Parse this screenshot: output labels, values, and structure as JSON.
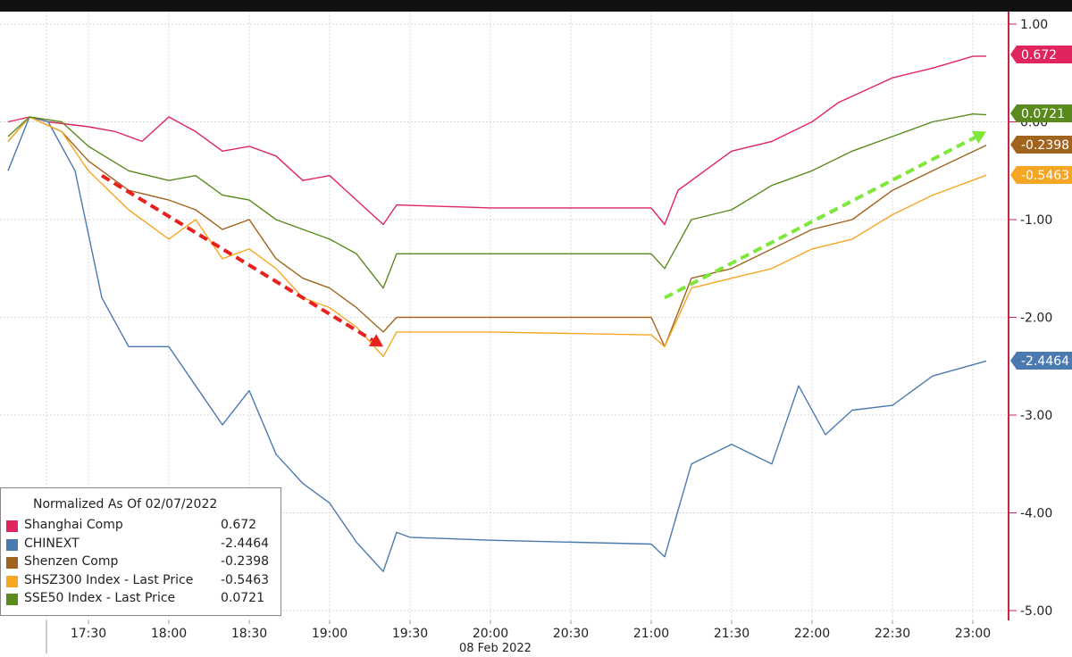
{
  "chart_data": {
    "type": "line",
    "title": "",
    "legend_title": "Normalized As Of 02/07/2022",
    "x_date_label": "08 Feb 2022",
    "xticks": [
      "17:30",
      "18:00",
      "18:30",
      "19:00",
      "19:30",
      "20:00",
      "20:30",
      "21:00",
      "21:30",
      "22:00",
      "22:30",
      "23:00"
    ],
    "yticks": [
      "1.00",
      "0.00",
      "-1.00",
      "-2.00",
      "-3.00",
      "-4.00",
      "-5.00"
    ],
    "ylim": [
      -5.0,
      1.0
    ],
    "xlim": [
      "17:00",
      "23:10"
    ],
    "grid": true,
    "legend_position": "bottom-left",
    "series": [
      {
        "name": "Shanghai Comp",
        "last": "0.672",
        "color": "#e0245e",
        "points": [
          [
            "17:00",
            0.0
          ],
          [
            "17:08",
            0.05
          ],
          [
            "17:15",
            0.0
          ],
          [
            "17:30",
            -0.05
          ],
          [
            "17:40",
            -0.1
          ],
          [
            "17:50",
            -0.2
          ],
          [
            "18:00",
            0.05
          ],
          [
            "18:10",
            -0.1
          ],
          [
            "18:20",
            -0.3
          ],
          [
            "18:30",
            -0.25
          ],
          [
            "18:40",
            -0.35
          ],
          [
            "18:50",
            -0.6
          ],
          [
            "19:00",
            -0.55
          ],
          [
            "19:10",
            -0.8
          ],
          [
            "19:20",
            -1.05
          ],
          [
            "19:25",
            -0.85
          ],
          [
            "20:00",
            -0.88
          ],
          [
            "21:00",
            -0.88
          ],
          [
            "21:05",
            -1.05
          ],
          [
            "21:10",
            -0.7
          ],
          [
            "21:30",
            -0.3
          ],
          [
            "21:45",
            -0.2
          ],
          [
            "22:00",
            0.0
          ],
          [
            "22:10",
            0.2
          ],
          [
            "22:30",
            0.45
          ],
          [
            "22:45",
            0.55
          ],
          [
            "23:00",
            0.67
          ],
          [
            "23:05",
            0.672
          ]
        ]
      },
      {
        "name": "CHINEXT",
        "last": "-2.4464",
        "color": "#4a7ab0",
        "points": [
          [
            "17:00",
            -0.5
          ],
          [
            "17:08",
            0.05
          ],
          [
            "17:15",
            0.0
          ],
          [
            "17:25",
            -0.5
          ],
          [
            "17:35",
            -1.8
          ],
          [
            "17:45",
            -2.3
          ],
          [
            "18:00",
            -2.3
          ],
          [
            "18:10",
            -2.7
          ],
          [
            "18:20",
            -3.1
          ],
          [
            "18:30",
            -2.75
          ],
          [
            "18:40",
            -3.4
          ],
          [
            "18:50",
            -3.7
          ],
          [
            "19:00",
            -3.9
          ],
          [
            "19:10",
            -4.3
          ],
          [
            "19:20",
            -4.6
          ],
          [
            "19:25",
            -4.2
          ],
          [
            "19:30",
            -4.25
          ],
          [
            "20:00",
            -4.28
          ],
          [
            "21:00",
            -4.32
          ],
          [
            "21:05",
            -4.45
          ],
          [
            "21:15",
            -3.5
          ],
          [
            "21:30",
            -3.3
          ],
          [
            "21:45",
            -3.5
          ],
          [
            "21:55",
            -2.7
          ],
          [
            "22:05",
            -3.2
          ],
          [
            "22:15",
            -2.95
          ],
          [
            "22:30",
            -2.9
          ],
          [
            "22:45",
            -2.6
          ],
          [
            "23:05",
            -2.4464
          ]
        ]
      },
      {
        "name": "Shenzen Comp",
        "last": "-0.2398",
        "color": "#a0641e",
        "points": [
          [
            "17:00",
            -0.2
          ],
          [
            "17:08",
            0.05
          ],
          [
            "17:20",
            -0.1
          ],
          [
            "17:30",
            -0.4
          ],
          [
            "17:45",
            -0.7
          ],
          [
            "18:00",
            -0.8
          ],
          [
            "18:10",
            -0.9
          ],
          [
            "18:20",
            -1.1
          ],
          [
            "18:30",
            -1.0
          ],
          [
            "18:40",
            -1.4
          ],
          [
            "18:50",
            -1.6
          ],
          [
            "19:00",
            -1.7
          ],
          [
            "19:10",
            -1.9
          ],
          [
            "19:20",
            -2.15
          ],
          [
            "19:25",
            -2.0
          ],
          [
            "20:00",
            -2.0
          ],
          [
            "21:00",
            -2.0
          ],
          [
            "21:05",
            -2.3
          ],
          [
            "21:15",
            -1.6
          ],
          [
            "21:30",
            -1.5
          ],
          [
            "21:45",
            -1.3
          ],
          [
            "22:00",
            -1.1
          ],
          [
            "22:15",
            -1.0
          ],
          [
            "22:30",
            -0.7
          ],
          [
            "22:45",
            -0.5
          ],
          [
            "23:05",
            -0.2398
          ]
        ]
      },
      {
        "name": "SHSZ300 Index - Last Price",
        "last": "-0.5463",
        "color": "#f5a623",
        "points": [
          [
            "17:00",
            -0.2
          ],
          [
            "17:08",
            0.05
          ],
          [
            "17:20",
            -0.1
          ],
          [
            "17:30",
            -0.5
          ],
          [
            "17:45",
            -0.9
          ],
          [
            "18:00",
            -1.2
          ],
          [
            "18:10",
            -1.0
          ],
          [
            "18:20",
            -1.4
          ],
          [
            "18:30",
            -1.3
          ],
          [
            "18:40",
            -1.5
          ],
          [
            "18:50",
            -1.8
          ],
          [
            "19:00",
            -1.9
          ],
          [
            "19:10",
            -2.1
          ],
          [
            "19:20",
            -2.4
          ],
          [
            "19:25",
            -2.15
          ],
          [
            "20:00",
            -2.15
          ],
          [
            "21:00",
            -2.18
          ],
          [
            "21:05",
            -2.3
          ],
          [
            "21:15",
            -1.7
          ],
          [
            "21:30",
            -1.6
          ],
          [
            "21:45",
            -1.5
          ],
          [
            "22:00",
            -1.3
          ],
          [
            "22:15",
            -1.2
          ],
          [
            "22:30",
            -0.95
          ],
          [
            "22:45",
            -0.75
          ],
          [
            "23:05",
            -0.5463
          ]
        ]
      },
      {
        "name": "SSE50 Index - Last Price",
        "last": "0.0721",
        "color": "#5a8a1e",
        "points": [
          [
            "17:00",
            -0.15
          ],
          [
            "17:08",
            0.05
          ],
          [
            "17:20",
            0.0
          ],
          [
            "17:30",
            -0.25
          ],
          [
            "17:45",
            -0.5
          ],
          [
            "18:00",
            -0.6
          ],
          [
            "18:10",
            -0.55
          ],
          [
            "18:20",
            -0.75
          ],
          [
            "18:30",
            -0.8
          ],
          [
            "18:40",
            -1.0
          ],
          [
            "18:50",
            -1.1
          ],
          [
            "19:00",
            -1.2
          ],
          [
            "19:10",
            -1.35
          ],
          [
            "19:20",
            -1.7
          ],
          [
            "19:25",
            -1.35
          ],
          [
            "20:00",
            -1.35
          ],
          [
            "21:00",
            -1.35
          ],
          [
            "21:05",
            -1.5
          ],
          [
            "21:15",
            -1.0
          ],
          [
            "21:30",
            -0.9
          ],
          [
            "21:45",
            -0.65
          ],
          [
            "22:00",
            -0.5
          ],
          [
            "22:15",
            -0.3
          ],
          [
            "22:30",
            -0.15
          ],
          [
            "22:45",
            0.0
          ],
          [
            "23:00",
            0.08
          ],
          [
            "23:05",
            0.0721
          ]
        ]
      }
    ],
    "annotations": [
      {
        "kind": "dashed-arrow",
        "color": "#e8201e",
        "from": [
          "17:35",
          -0.55
        ],
        "to": [
          "19:20",
          -2.3
        ]
      },
      {
        "kind": "dashed-arrow",
        "color": "#7ee83a",
        "from": [
          "21:05",
          -1.8
        ],
        "to": [
          "23:05",
          -0.1
        ]
      }
    ]
  }
}
